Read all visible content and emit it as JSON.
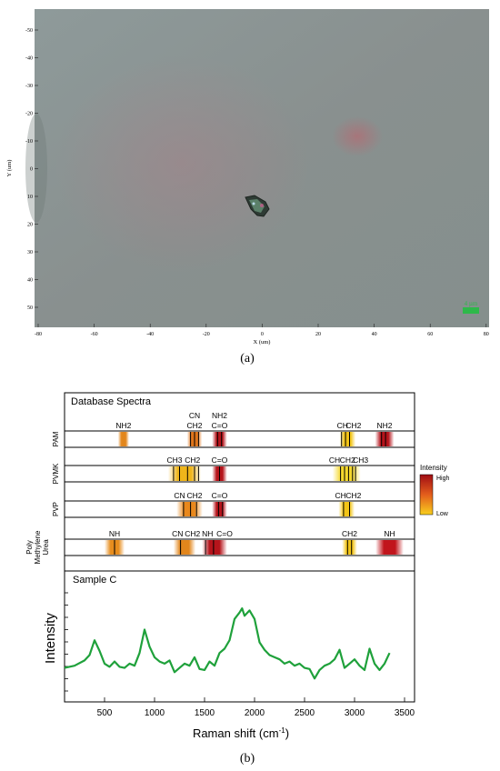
{
  "panel_a": {
    "caption": "(a)",
    "x_axis_label": "X (um)",
    "y_axis_label": "Y (um)",
    "x_ticks": [
      "-80",
      "-60",
      "-40",
      "-20",
      "0",
      "20",
      "40",
      "60",
      "80"
    ],
    "y_ticks": [
      "-50",
      "-40",
      "-30",
      "-20",
      "-10",
      "0",
      "10",
      "20",
      "30",
      "40",
      "50"
    ],
    "scale_bar_label": "4 µm",
    "background_color": "#8a9596"
  },
  "panel_b": {
    "caption": "(b)",
    "database_title": "Database Spectra",
    "legend": {
      "title": "Intensity",
      "high": "High",
      "low": "Low"
    },
    "rows": [
      {
        "name": "PAM",
        "labels": [
          {
            "text": "NH2",
            "x": 690,
            "line": 0
          },
          {
            "text": "CN",
            "x": 1400,
            "line": 1
          },
          {
            "text": "CH2",
            "x": 1400,
            "line": 0
          },
          {
            "text": "NH2",
            "x": 1650,
            "line": 1
          },
          {
            "text": "C=O",
            "x": 1650,
            "line": 0
          },
          {
            "text": "CH",
            "x": 2880,
            "line": 0
          },
          {
            "text": "CH2",
            "x": 2990,
            "line": 0
          },
          {
            "text": "NH2",
            "x": 3300,
            "line": 0
          }
        ],
        "bands": [
          {
            "c": 690,
            "w": 110,
            "color": "#e2861c"
          },
          {
            "c": 1400,
            "w": 150,
            "color": "#e0751a"
          },
          {
            "c": 1650,
            "w": 150,
            "color": "#b5141b"
          },
          {
            "c": 2930,
            "w": 160,
            "color": "#f2c417"
          },
          {
            "c": 3300,
            "w": 190,
            "color": "#b5141b"
          }
        ],
        "lines": [
          1360,
          1400,
          1440,
          1630,
          1670,
          2870,
          2910,
          2950,
          3270,
          3310
        ]
      },
      {
        "name": "PVMK",
        "labels": [
          {
            "text": "CH3",
            "x": 1200,
            "line": 0
          },
          {
            "text": "CH2",
            "x": 1380,
            "line": 0
          },
          {
            "text": "C=O",
            "x": 1650,
            "line": 0
          },
          {
            "text": "CH",
            "x": 2800,
            "line": 0
          },
          {
            "text": "CH2",
            "x": 2930,
            "line": 0
          },
          {
            "text": "CH3",
            "x": 3060,
            "line": 0
          }
        ],
        "bands": [
          {
            "c": 1300,
            "w": 330,
            "color": "#efb51a"
          },
          {
            "c": 1650,
            "w": 150,
            "color": "#b5141b"
          },
          {
            "c": 2920,
            "w": 280,
            "color": "#f5d82d"
          }
        ],
        "lines": [
          1190,
          1250,
          1330,
          1400,
          1440,
          1650,
          2860,
          2900,
          2940,
          2980,
          3010
        ]
      },
      {
        "name": "PVP",
        "labels": [
          {
            "text": "CN",
            "x": 1250,
            "line": 0
          },
          {
            "text": "CH2",
            "x": 1400,
            "line": 0
          },
          {
            "text": "C=O",
            "x": 1650,
            "line": 0
          },
          {
            "text": "CH",
            "x": 2860,
            "line": 0
          },
          {
            "text": "CH2",
            "x": 2990,
            "line": 0
          }
        ],
        "bands": [
          {
            "c": 1350,
            "w": 260,
            "color": "#e9881c"
          },
          {
            "c": 1650,
            "w": 150,
            "color": "#b5141b"
          },
          {
            "c": 2920,
            "w": 160,
            "color": "#f2c417"
          }
        ],
        "lines": [
          1290,
          1360,
          1420,
          1640,
          1680,
          2890,
          2950
        ]
      },
      {
        "name": "Poly Methylene Urea",
        "labels": [
          {
            "text": "NH",
            "x": 600,
            "line": 0
          },
          {
            "text": "CN",
            "x": 1230,
            "line": 0
          },
          {
            "text": "CH2",
            "x": 1380,
            "line": 0
          },
          {
            "text": "NH",
            "x": 1530,
            "line": 0
          },
          {
            "text": "C=O",
            "x": 1700,
            "line": 0
          },
          {
            "text": "CH2",
            "x": 2950,
            "line": 0
          },
          {
            "text": "NH",
            "x": 3350,
            "line": 0
          }
        ],
        "bands": [
          {
            "c": 600,
            "w": 200,
            "color": "#e78d1d"
          },
          {
            "c": 1300,
            "w": 220,
            "color": "#e2861c"
          },
          {
            "c": 1600,
            "w": 250,
            "color": "#b5141b"
          },
          {
            "c": 2950,
            "w": 150,
            "color": "#f2c417"
          },
          {
            "c": 3350,
            "w": 280,
            "color": "#c1151c"
          }
        ],
        "lines": [
          600,
          1260,
          1510,
          1590,
          2930,
          2970
        ]
      }
    ]
  },
  "chart_data": {
    "type": "line",
    "title": "Sample C",
    "xlabel": "Raman shift (cm-1)",
    "ylabel": "Intensity",
    "xlim": [
      100,
      3600
    ],
    "ylim": [
      0,
      100
    ],
    "x_ticks": [
      "500",
      "1000",
      "1500",
      "2000",
      "2500",
      "3000",
      "3500"
    ],
    "series": [
      {
        "color": "#1fa13b",
        "x": [
          100,
          200,
          300,
          350,
          400,
          450,
          500,
          550,
          600,
          650,
          700,
          750,
          800,
          850,
          900,
          950,
          1000,
          1050,
          1100,
          1150,
          1200,
          1250,
          1300,
          1350,
          1400,
          1450,
          1500,
          1550,
          1600,
          1650,
          1700,
          1750,
          1800,
          1850,
          1875,
          1900,
          1950,
          2000,
          2050,
          2100,
          2150,
          2200,
          2250,
          2300,
          2350,
          2400,
          2450,
          2500,
          2550,
          2600,
          2650,
          2700,
          2750,
          2800,
          2850,
          2900,
          2950,
          3000,
          3050,
          3100,
          3150,
          3200,
          3250,
          3300,
          3350
        ],
        "y": [
          26,
          28,
          33,
          38,
          52,
          42,
          30,
          27,
          32,
          27,
          26,
          30,
          28,
          40,
          62,
          46,
          36,
          32,
          30,
          33,
          22,
          26,
          30,
          28,
          36,
          25,
          24,
          32,
          28,
          40,
          44,
          52,
          72,
          78,
          82,
          75,
          80,
          72,
          50,
          43,
          38,
          36,
          34,
          30,
          32,
          28,
          30,
          26,
          25,
          16,
          24,
          28,
          30,
          34,
          43,
          26,
          30,
          34,
          28,
          24,
          44,
          30,
          24,
          30,
          40
        ]
      }
    ]
  }
}
